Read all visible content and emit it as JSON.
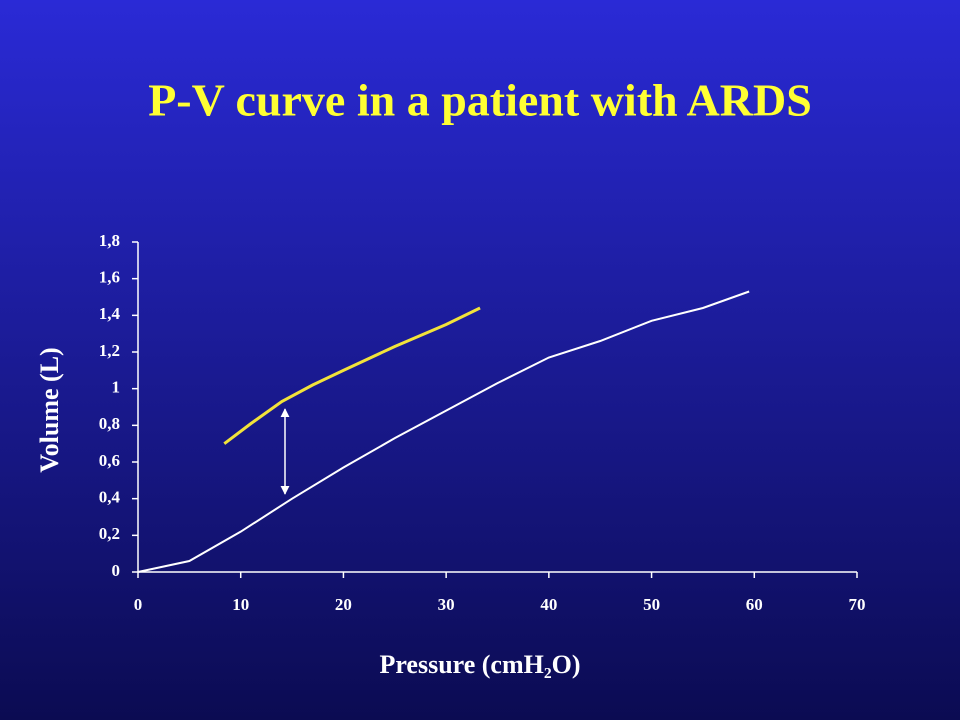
{
  "chart_data": {
    "type": "line",
    "title": "P-V curve in a patient with ARDS",
    "x_label": "Pressure (cmH₂O)",
    "y_label": "Volume (L)",
    "xlim": [
      0,
      70
    ],
    "xticks": [
      0,
      10,
      20,
      30,
      40,
      50,
      60,
      70
    ],
    "ylim": [
      0,
      1.8
    ],
    "yticks": [
      0,
      {
        "value": 0.2,
        "label": "0,2"
      },
      {
        "value": 0.4,
        "label": "0,4"
      },
      {
        "value": 0.6,
        "label": "0,6"
      },
      {
        "value": 0.8,
        "label": "0,8"
      },
      1,
      {
        "value": 1.2,
        "label": "1,2"
      },
      {
        "value": 1.4,
        "label": "1,4"
      },
      {
        "value": 1.6,
        "label": "1,6"
      },
      {
        "value": 1.8,
        "label": "1,8"
      }
    ],
    "series": [
      {
        "color": "#ffffff",
        "x": [
          0,
          5,
          10,
          15,
          20,
          25,
          30,
          35,
          40,
          45,
          50,
          55,
          59.5
        ],
        "values": [
          0,
          0.06,
          0.22,
          0.4,
          0.57,
          0.73,
          0.88,
          1.03,
          1.17,
          1.26,
          1.37,
          1.44,
          1.53
        ]
      },
      {
        "color": "#f2e33a",
        "x": [
          8.4,
          11,
          14,
          17,
          20,
          25,
          30,
          33.3
        ],
        "values": [
          0.7,
          0.81,
          0.93,
          1.02,
          1.1,
          1.23,
          1.35,
          1.44
        ]
      }
    ]
  }
}
